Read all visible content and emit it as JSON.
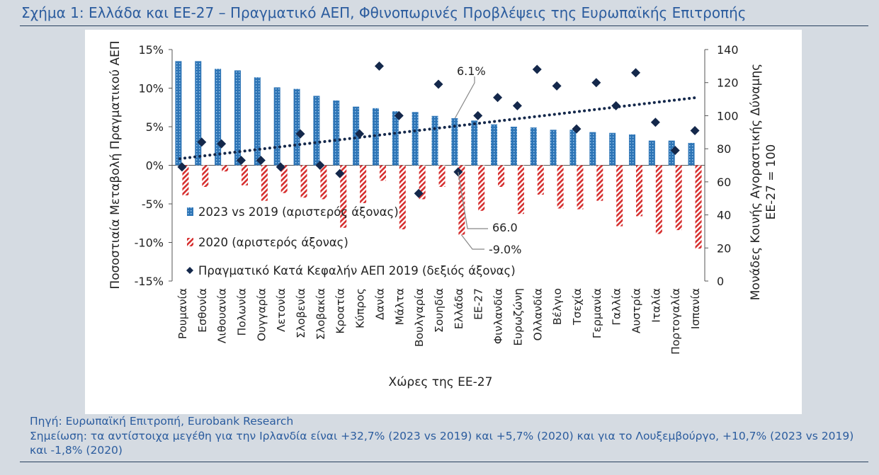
{
  "title": "Σχήμα 1: Ελλάδα και ΕΕ-27 – Πραγματικό ΑΕΠ, Φθινοπωρινές Προβλέψεις της Ευρωπαϊκής Επιτροπής",
  "source": "Πηγή: Ευρωπαϊκή Επιτροπή, Eurobank Research",
  "note": "Σημείωση: τα αντίστοιχα μεγέθη για την Ιρλανδία είναι +32,7% (2023 vs 2019) και +5,7% (2020) και για το Λουξεμβούργο, +10,7% (2023 vs 2019) και -1,8% (2020)",
  "colors": {
    "bar_2023": "#2e75b6",
    "bar_2020": "#d62e2e",
    "diamond": "#14284b",
    "trend": "#14284b",
    "title": "#2b5c9e"
  },
  "chart_data": {
    "type": "bar",
    "xlabel": "Χώρες της ΕΕ-27",
    "ylabel_left": "Ποσοστιαία Μεταβολή Πραγματικού ΑΕΠ",
    "ylabel_right_line1": "Μονάδες Κοινής Αγοραστικής Δύναμης",
    "ylabel_right_line2": "ΕΕ-27 = 100",
    "ylim_left": [
      -15,
      15
    ],
    "ylim_right": [
      0,
      140
    ],
    "left_ticks": [
      "15%",
      "10%",
      "5%",
      "0%",
      "-5%",
      "-10%",
      "-15%"
    ],
    "right_ticks": [
      "140",
      "120",
      "100",
      "80",
      "60",
      "40",
      "20",
      "0"
    ],
    "categories": [
      "Ρουμανία",
      "Εσθονία",
      "Λιθουανία",
      "Πολωνία",
      "Ουγγαρία",
      "Λετονία",
      "Σλοβενία",
      "Σλοβακία",
      "Κροατία",
      "Κύπρος",
      "Δανία",
      "Μάλτα",
      "Βουλγαρία",
      "Σουηδία",
      "Ελλάδα",
      "ΕΕ-27",
      "Φινλανδία",
      "Ευρωζώνη",
      "Ολλανδία",
      "Βέλγιο",
      "Τσεχία",
      "Γερμανία",
      "Γαλλία",
      "Αυστρία",
      "Ιταλία",
      "Πορτογαλία",
      "Ισπανία"
    ],
    "series": [
      {
        "name": "2023 vs 2019 (αριστερός άξονας)",
        "axis": "left",
        "values": [
          13.5,
          13.5,
          12.5,
          12.3,
          11.4,
          10.1,
          9.9,
          9.0,
          8.4,
          7.6,
          7.4,
          7.0,
          6.9,
          6.4,
          6.1,
          5.8,
          5.3,
          5.0,
          4.9,
          4.6,
          4.6,
          4.3,
          4.2,
          4.0,
          3.2,
          3.2,
          2.9
        ]
      },
      {
        "name": "2020 (αριστερός άξονας)",
        "axis": "left",
        "values": [
          -3.9,
          -2.8,
          -0.8,
          -2.6,
          -4.6,
          -3.6,
          -4.2,
          -4.4,
          -8.1,
          -4.9,
          -2.0,
          -8.3,
          -4.4,
          -2.8,
          -9.0,
          -5.9,
          -2.8,
          -6.3,
          -3.8,
          -5.6,
          -5.7,
          -4.6,
          -7.9,
          -6.6,
          -8.9,
          -8.4,
          -10.8
        ]
      },
      {
        "name": "Πραγματικό Κατά Κεφαλήν ΑΕΠ 2019 (δεξιός άξονας)",
        "axis": "right",
        "type": "scatter",
        "values": [
          69,
          84,
          83,
          73,
          73,
          69,
          89,
          70,
          65,
          89,
          130,
          100,
          53,
          119,
          66,
          100,
          111,
          106,
          128,
          118,
          92,
          120,
          106,
          126,
          96,
          79,
          91
        ]
      }
    ],
    "trendline_right": [
      74,
      111
    ],
    "annotations": {
      "greece_2023": "6.1%",
      "greece_gdp_per_capita": "66.0",
      "greece_2020": "-9.0%"
    }
  }
}
